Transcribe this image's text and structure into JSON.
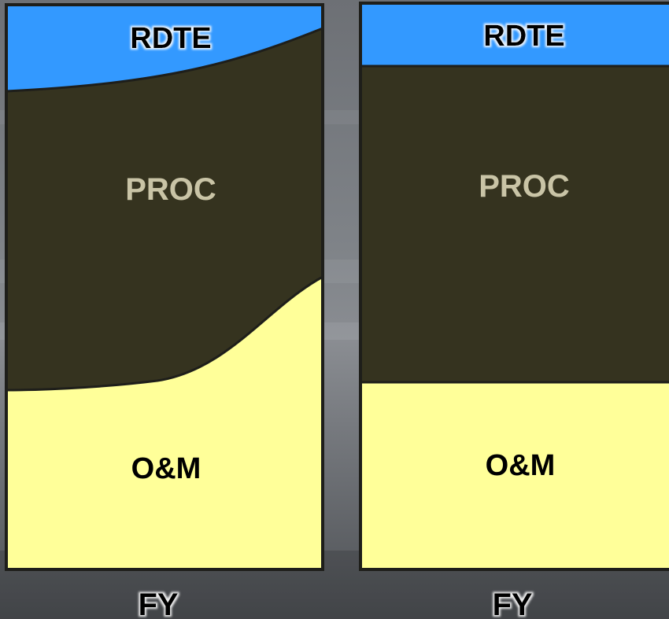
{
  "panels": [
    {
      "rdte_label": "RDTE",
      "proc_label": "PROC",
      "om_label": "O&M",
      "fy_label": "FY"
    },
    {
      "rdte_label": "RDTE",
      "proc_label": "PROC",
      "om_label": "O&M",
      "fy_label": "FY"
    }
  ],
  "colors": {
    "rdte": "#3399ff",
    "proc": "#35331f",
    "om": "#ffff99",
    "border": "#1e1e1a",
    "proc_text": "#c9c4a6",
    "label_text": "#000000",
    "fy_text": "#000000"
  }
}
